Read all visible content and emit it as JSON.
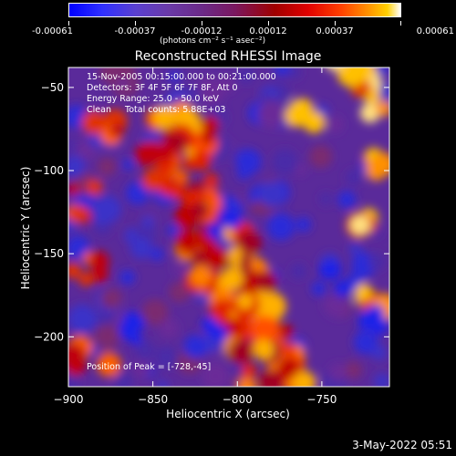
{
  "colorbar": {
    "tick_labels": [
      "-0.00061",
      "-0.00037",
      "-0.00012",
      "0.00012",
      "0.00037",
      "0.00061"
    ],
    "units": "(photons cm⁻² s⁻¹ asec⁻²)"
  },
  "info": {
    "time_range": "15-Nov-2005 00:15:00.000 to 00:21:00.000",
    "detectors": "Detectors: 3F 4F 5F 6F 7F 8F, Att 0",
    "energy": "Energy Range: 25.0 - 50.0 keV",
    "clean": "Clean     Total counts: 5.88E+03",
    "peak": "Position of Peak = [-728,-45]"
  },
  "footer": {
    "date": "3-May-2022 05:51"
  },
  "colors": {
    "background": "#000000",
    "text": "#ffffff"
  },
  "chart_data": {
    "type": "heatmap",
    "title": "Reconstructed RHESSI Image",
    "xlabel": "Heliocentric X (arcsec)",
    "ylabel": "Heliocentric Y (arcsec)",
    "xlim": [
      -900,
      -710
    ],
    "ylim": [
      -230,
      -38
    ],
    "x_ticks": [
      -900,
      -850,
      -800,
      -750
    ],
    "y_ticks": [
      -200,
      -150,
      -100,
      -50
    ],
    "x_tick_labels": [
      "−900",
      "−850",
      "−800",
      "−750"
    ],
    "y_tick_labels": [
      "−200",
      "−150",
      "−100",
      "−50"
    ],
    "color_range": [
      -0.00061,
      0.00061
    ],
    "colormap": "blue-purple-red-yellow-white",
    "peak_position": [
      -728,
      -45
    ]
  }
}
